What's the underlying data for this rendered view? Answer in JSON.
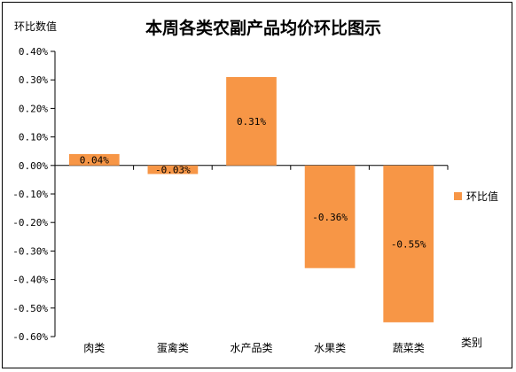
{
  "chart_data": {
    "type": "bar",
    "title": "本周各类农副产品均价环比图示",
    "ylabel": "环比数值",
    "xlabel": "类别",
    "categories": [
      "肉类",
      "蛋禽类",
      "水产品类",
      "水果类",
      "蔬菜类"
    ],
    "series": [
      {
        "name": "环比值",
        "values": [
          0.04,
          -0.03,
          0.31,
          -0.36,
          -0.55
        ],
        "labels": [
          "0.04%",
          "-0.03%",
          "0.31%",
          "-0.36%",
          "-0.55%"
        ]
      }
    ],
    "ylim": [
      -0.6,
      0.4
    ],
    "yticks": [
      0.4,
      0.3,
      0.2,
      0.1,
      0.0,
      -0.1,
      -0.2,
      -0.3,
      -0.4,
      -0.5,
      -0.6
    ],
    "ytick_labels": [
      "0.40%",
      "0.30%",
      "0.20%",
      "0.10%",
      "0.00%",
      "-0.10%",
      "-0.20%",
      "-0.30%",
      "-0.40%",
      "-0.50%",
      "-0.60%"
    ],
    "grid": false,
    "legend_position": "right",
    "bar_color": "#F79646"
  }
}
